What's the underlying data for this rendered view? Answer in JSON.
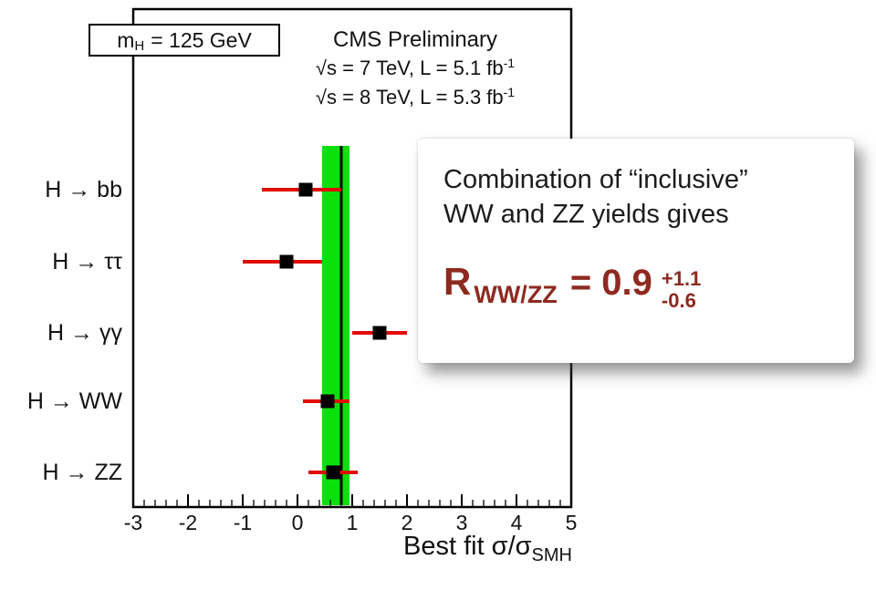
{
  "header": {
    "mh_box": {
      "symbol": "m",
      "sub": "H",
      "value": "= 125 GeV"
    },
    "cms_title": "CMS Preliminary",
    "lumi_7tev": {
      "main": "√s = 7 TeV, L = 5.1 fb",
      "sup": "-1"
    },
    "lumi_8tev": {
      "main": "√s = 8 TeV, L = 5.3 fb",
      "sup": "-1"
    }
  },
  "axis": {
    "label_main": "Best fit σ/σ",
    "label_sub": "SMH"
  },
  "overlay": {
    "line1": "Combination of “inclusive”",
    "line2": "WW and ZZ yields gives",
    "formula": {
      "r": "R",
      "sub": "WW/ZZ",
      "eq": "= 0.9",
      "plus": "+1.1",
      "minus": "-0.6"
    },
    "text_color": "#8e2a20"
  },
  "chart_data": {
    "type": "scatter",
    "title": "CMS Preliminary",
    "subtitle": [
      "√s = 7 TeV, L = 5.1 fb⁻¹",
      "√s = 8 TeV, L = 5.3 fb⁻¹"
    ],
    "annotation": "m_H = 125 GeV",
    "xlabel": "Best fit σ/σ_SMH",
    "xlim": [
      -3,
      5
    ],
    "x_ticks": [
      -3,
      -2,
      -1,
      0,
      1,
      2,
      3,
      4,
      5
    ],
    "grid": false,
    "band": {
      "xmin": 0.45,
      "xmax": 0.95,
      "color": "#0ae10a"
    },
    "combined_line": {
      "x": 0.8,
      "color": "#000000"
    },
    "error_color": "#e10b00",
    "marker_color": "#000000",
    "channels": [
      {
        "label": "H → bb",
        "value": 0.15,
        "lo": -0.65,
        "hi": 0.8
      },
      {
        "label": "H → ττ",
        "value": -0.2,
        "lo": -1.0,
        "hi": 0.45
      },
      {
        "label": "H → γγ",
        "value": 1.5,
        "lo": 1.0,
        "hi": 2.0
      },
      {
        "label": "H → WW",
        "value": 0.55,
        "lo": 0.1,
        "hi": 0.95
      },
      {
        "label": "H → ZZ",
        "value": 0.65,
        "lo": 0.2,
        "hi": 1.1
      }
    ]
  }
}
